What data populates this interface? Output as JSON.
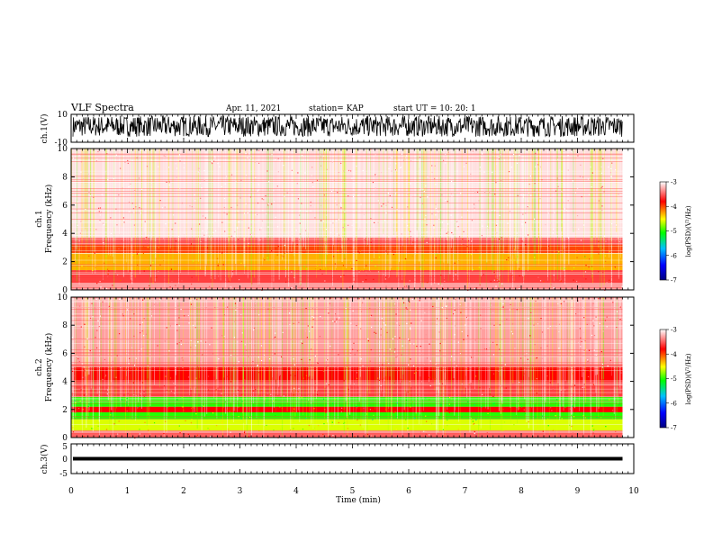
{
  "header": {
    "title": "VLF Spectra",
    "date": "Apr. 11, 2021",
    "station": "station= KAP",
    "start": "start  UT =    10: 20: 1"
  },
  "axes": {
    "ch1_label": "ch.1(V)",
    "ch1_ticks": [
      "10",
      "-10"
    ],
    "ch3_label": "ch.3(V)",
    "ch3_ticks": [
      "5",
      "0",
      "-5"
    ],
    "spec1_label_line1": "ch.1",
    "spec1_label_line2": "Frequency (kHz)",
    "spec2_label_line1": "ch.2",
    "spec2_label_line2": "Frequency (kHz)",
    "freq_ticks": [
      "0",
      "2",
      "4",
      "6",
      "8",
      "10"
    ],
    "time_ticks": [
      "0",
      "1",
      "2",
      "3",
      "4",
      "5",
      "6",
      "7",
      "8",
      "9",
      "10"
    ],
    "xlabel": "Time  (min)"
  },
  "colorbar": {
    "label": "log(PSD)(V²/Hz)",
    "ticks": [
      "-3",
      "-4",
      "-5",
      "-6",
      "-7"
    ],
    "range": [
      -7,
      -3
    ],
    "colors": [
      "#000080",
      "#0000ff",
      "#00c0ff",
      "#00ff00",
      "#ffff00",
      "#ff0000",
      "#ffffff"
    ]
  },
  "chart_data": [
    {
      "type": "line",
      "name": "ch.1 waveform",
      "ylabel": "ch.1(V)",
      "xlim": [
        0,
        10
      ],
      "ylim": [
        -10,
        10
      ],
      "x_unit": "min",
      "amplitude_range": [
        -6,
        9
      ]
    },
    {
      "type": "heatmap",
      "ylabel": "ch.1 Frequency (kHz)",
      "xlim": [
        0,
        10
      ],
      "ylim": [
        0,
        10
      ],
      "xlabel": "Time (min)",
      "data_end_min": 9.8,
      "bands": [
        {
          "from_khz": 0,
          "to_khz": 0.5,
          "level": -3.3
        },
        {
          "from_khz": 0.5,
          "to_khz": 1.4,
          "level": -3.6
        },
        {
          "from_khz": 1.4,
          "to_khz": 2.6,
          "level": -4.3
        },
        {
          "from_khz": 2.6,
          "to_khz": 3.2,
          "level": -4.0
        },
        {
          "from_khz": 3.2,
          "to_khz": 3.7,
          "level": -3.5
        },
        {
          "from_khz": 3.7,
          "to_khz": 10,
          "level": -3.1
        }
      ]
    },
    {
      "type": "heatmap",
      "ylabel": "ch.2 Frequency (kHz)",
      "xlim": [
        0,
        10
      ],
      "ylim": [
        0,
        10
      ],
      "xlabel": "Time (min)",
      "data_end_min": 9.8,
      "bands": [
        {
          "from_khz": 0,
          "to_khz": 0.5,
          "level": -3.5
        },
        {
          "from_khz": 0.5,
          "to_khz": 1.3,
          "level": -4.6
        },
        {
          "from_khz": 1.3,
          "to_khz": 1.8,
          "level": -5.0
        },
        {
          "from_khz": 1.8,
          "to_khz": 2.2,
          "level": -3.8
        },
        {
          "from_khz": 2.2,
          "to_khz": 2.9,
          "level": -5.0
        },
        {
          "from_khz": 2.9,
          "to_khz": 4.1,
          "level": -3.6
        },
        {
          "from_khz": 4.1,
          "to_khz": 5.0,
          "level": -3.8
        },
        {
          "from_khz": 5.0,
          "to_khz": 10,
          "level": -3.3
        }
      ]
    },
    {
      "type": "line",
      "name": "ch.3 waveform",
      "ylabel": "ch.3(V)",
      "xlim": [
        0,
        10
      ],
      "ylim": [
        -5,
        5
      ],
      "x_unit": "min",
      "amplitude_range": [
        -0.6,
        0.6
      ]
    }
  ]
}
